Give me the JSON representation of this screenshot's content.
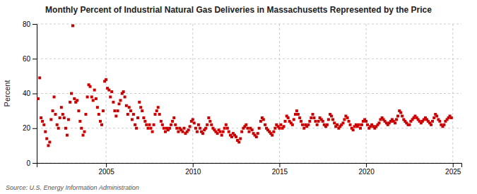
{
  "chart_data": {
    "type": "scatter",
    "title": "Monthly Percent of Industrial Natural Gas Deliveries in Massachusetts Represented by the Price",
    "y_label": "Percent",
    "source": "Source: U.S. Energy Information Administration",
    "color": "#cc0000",
    "marker": "square",
    "grid": true,
    "xlim": [
      2001.0,
      2025.5
    ],
    "xticks": [
      2005,
      2010,
      2015,
      2020,
      2025
    ],
    "ylim": [
      0,
      80
    ],
    "yticks": [
      0,
      20,
      40,
      60,
      80
    ],
    "x": [
      2001.08,
      2001.17,
      2001.25,
      2001.33,
      2001.42,
      2001.5,
      2001.58,
      2001.67,
      2001.75,
      2001.83,
      2001.92,
      2002.0,
      2002.08,
      2002.17,
      2002.25,
      2002.33,
      2002.42,
      2002.5,
      2002.58,
      2002.67,
      2002.75,
      2002.83,
      2002.92,
      2003.0,
      2003.08,
      2003.17,
      2003.25,
      2003.33,
      2003.42,
      2003.5,
      2003.58,
      2003.67,
      2003.75,
      2003.83,
      2003.92,
      2004.0,
      2004.08,
      2004.17,
      2004.25,
      2004.33,
      2004.42,
      2004.5,
      2004.58,
      2004.67,
      2004.75,
      2004.83,
      2004.92,
      2005.0,
      2005.08,
      2005.17,
      2005.25,
      2005.33,
      2005.42,
      2005.5,
      2005.58,
      2005.67,
      2005.75,
      2005.83,
      2005.92,
      2006.0,
      2006.08,
      2006.17,
      2006.25,
      2006.33,
      2006.42,
      2006.5,
      2006.58,
      2006.67,
      2006.75,
      2006.83,
      2006.92,
      2007.0,
      2007.08,
      2007.17,
      2007.25,
      2007.33,
      2007.42,
      2007.5,
      2007.58,
      2007.67,
      2007.75,
      2007.83,
      2007.92,
      2008.0,
      2008.08,
      2008.17,
      2008.25,
      2008.33,
      2008.42,
      2008.5,
      2008.58,
      2008.67,
      2008.75,
      2008.83,
      2008.92,
      2009.0,
      2009.08,
      2009.17,
      2009.25,
      2009.33,
      2009.42,
      2009.5,
      2009.58,
      2009.67,
      2009.75,
      2009.83,
      2009.92,
      2010.0,
      2010.08,
      2010.17,
      2010.25,
      2010.33,
      2010.42,
      2010.5,
      2010.58,
      2010.67,
      2010.75,
      2010.83,
      2010.92,
      2011.0,
      2011.08,
      2011.17,
      2011.25,
      2011.33,
      2011.42,
      2011.5,
      2011.58,
      2011.67,
      2011.75,
      2011.83,
      2011.92,
      2012.0,
      2012.08,
      2012.17,
      2012.25,
      2012.33,
      2012.42,
      2012.5,
      2012.58,
      2012.67,
      2012.75,
      2012.83,
      2012.92,
      2013.0,
      2013.08,
      2013.17,
      2013.25,
      2013.33,
      2013.42,
      2013.5,
      2013.58,
      2013.67,
      2013.75,
      2013.83,
      2013.92,
      2014.0,
      2014.08,
      2014.17,
      2014.25,
      2014.33,
      2014.42,
      2014.5,
      2014.58,
      2014.67,
      2014.75,
      2014.83,
      2014.92,
      2015.0,
      2015.08,
      2015.17,
      2015.25,
      2015.33,
      2015.42,
      2015.5,
      2015.58,
      2015.67,
      2015.75,
      2015.83,
      2015.92,
      2016.0,
      2016.08,
      2016.17,
      2016.25,
      2016.33,
      2016.42,
      2016.5,
      2016.58,
      2016.67,
      2016.75,
      2016.83,
      2016.92,
      2017.0,
      2017.08,
      2017.17,
      2017.25,
      2017.33,
      2017.42,
      2017.5,
      2017.58,
      2017.67,
      2017.75,
      2017.83,
      2017.92,
      2018.0,
      2018.08,
      2018.17,
      2018.25,
      2018.33,
      2018.42,
      2018.5,
      2018.58,
      2018.67,
      2018.75,
      2018.83,
      2018.92,
      2019.0,
      2019.08,
      2019.17,
      2019.25,
      2019.33,
      2019.42,
      2019.5,
      2019.58,
      2019.67,
      2019.75,
      2019.83,
      2019.92,
      2020.0,
      2020.08,
      2020.17,
      2020.25,
      2020.33,
      2020.42,
      2020.5,
      2020.58,
      2020.67,
      2020.75,
      2020.83,
      2020.92,
      2021.0,
      2021.08,
      2021.17,
      2021.25,
      2021.33,
      2021.42,
      2021.5,
      2021.58,
      2021.67,
      2021.75,
      2021.83,
      2021.92,
      2022.0,
      2022.08,
      2022.17,
      2022.25,
      2022.33,
      2022.42,
      2022.5,
      2022.58,
      2022.67,
      2022.75,
      2022.83,
      2022.92,
      2023.0,
      2023.08,
      2023.17,
      2023.25,
      2023.33,
      2023.42,
      2023.5,
      2023.58,
      2023.67,
      2023.75,
      2023.83,
      2023.92,
      2024.0,
      2024.08,
      2024.17,
      2024.25,
      2024.33,
      2024.42,
      2024.5,
      2024.58,
      2024.67,
      2024.75,
      2024.83,
      2024.92
    ],
    "values": [
      37,
      49,
      26,
      24,
      22,
      18,
      14,
      10,
      12,
      25,
      30,
      38,
      28,
      22,
      20,
      26,
      32,
      28,
      26,
      20,
      16,
      25,
      35,
      40,
      79,
      37,
      35,
      36,
      30,
      24,
      20,
      16,
      18,
      28,
      38,
      45,
      44,
      38,
      36,
      42,
      37,
      32,
      28,
      24,
      22,
      30,
      47,
      48,
      43,
      42,
      38,
      41,
      35,
      30,
      27,
      30,
      34,
      36,
      40,
      41,
      38,
      33,
      28,
      32,
      30,
      25,
      28,
      22,
      20,
      26,
      35,
      32,
      30,
      26,
      24,
      22,
      20,
      22,
      20,
      18,
      22,
      28,
      30,
      32,
      28,
      24,
      22,
      20,
      18,
      20,
      19,
      20,
      22,
      24,
      26,
      22,
      20,
      18,
      20,
      19,
      18,
      20,
      17,
      18,
      19,
      21,
      24,
      25,
      23,
      20,
      18,
      22,
      20,
      18,
      17,
      19,
      20,
      22,
      26,
      24,
      22,
      20,
      19,
      18,
      17,
      19,
      18,
      16,
      18,
      20,
      22,
      20,
      18,
      16,
      15,
      17,
      16,
      15,
      13,
      12,
      14,
      18,
      20,
      21,
      22,
      20,
      18,
      20,
      19,
      17,
      16,
      15,
      17,
      20,
      24,
      26,
      25,
      22,
      20,
      19,
      18,
      17,
      16,
      18,
      20,
      22,
      21,
      20,
      22,
      20,
      21,
      24,
      27,
      26,
      24,
      23,
      22,
      25,
      28,
      30,
      28,
      26,
      24,
      22,
      20,
      22,
      21,
      22,
      24,
      26,
      28,
      26,
      24,
      22,
      24,
      26,
      25,
      24,
      22,
      21,
      22,
      25,
      28,
      27,
      25,
      23,
      21,
      22,
      20,
      21,
      22,
      23,
      25,
      27,
      26,
      24,
      22,
      20,
      19,
      21,
      22,
      21,
      22,
      20,
      22,
      24,
      25,
      24,
      22,
      20,
      21,
      22,
      21,
      20,
      21,
      22,
      23,
      25,
      26,
      25,
      24,
      23,
      22,
      23,
      24,
      25,
      24,
      23,
      25,
      27,
      30,
      29,
      27,
      25,
      24,
      23,
      22,
      22,
      24,
      25,
      26,
      27,
      26,
      25,
      24,
      23,
      24,
      25,
      26,
      25,
      24,
      23,
      22,
      24,
      26,
      28,
      27,
      25,
      24,
      22,
      21,
      22,
      24,
      25,
      26,
      27,
      26
    ]
  }
}
